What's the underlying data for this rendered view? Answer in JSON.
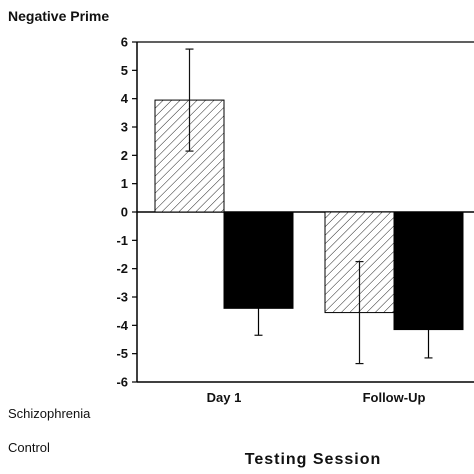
{
  "chart_data": {
    "type": "bar",
    "title": "Negative Prime",
    "xlabel": "Testing Session",
    "ylabel": "",
    "categories": [
      "Day 1",
      "Follow-Up"
    ],
    "ylim": [
      -6,
      6
    ],
    "yticks": [
      6,
      5,
      4,
      3,
      2,
      1,
      0,
      -1,
      -2,
      -3,
      -4,
      -5,
      -6
    ],
    "grid": false,
    "legend_position": "bottom-left",
    "series": [
      {
        "name": "Schizophrenia",
        "values": [
          3.95,
          -3.55
        ],
        "error_upper": [
          5.75,
          -1.75
        ],
        "error_lower": [
          2.15,
          -5.35
        ],
        "fill": "hatched",
        "color": "#ffffff"
      },
      {
        "name": "Control",
        "values": [
          -3.4,
          -4.15
        ],
        "error_upper": [
          -3.4,
          -4.15
        ],
        "error_lower": [
          -4.35,
          -5.15
        ],
        "fill": "solid",
        "color": "#000000"
      }
    ]
  }
}
